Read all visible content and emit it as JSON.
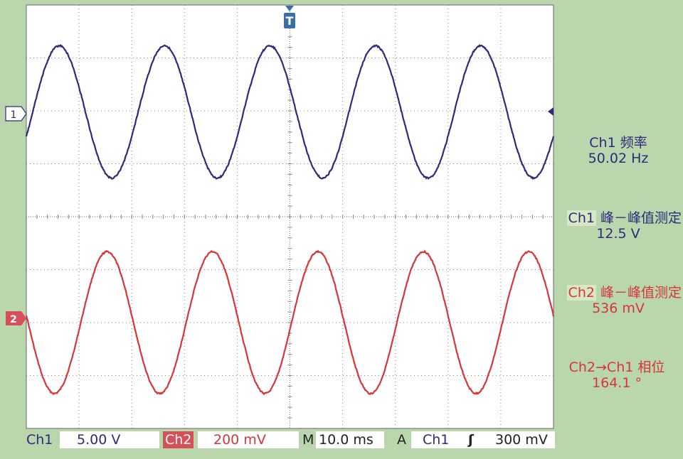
{
  "chart_data": {
    "type": "line",
    "title": "",
    "xlabel": "",
    "ylabel": "",
    "grid": true,
    "divisions": {
      "x": 10,
      "y": 8
    },
    "x_unit": "ms",
    "time_per_div_ms": 10.0,
    "xlim_ms": [
      -50,
      50
    ],
    "series": [
      {
        "name": "Ch1",
        "color": "#2f2a7a",
        "volts_per_div": 5.0,
        "frequency_hz": 50.02,
        "peak_to_peak_v": 12.5,
        "phase_deg": 164.1,
        "marker_label": "1"
      },
      {
        "name": "Ch2",
        "color": "#d6363a",
        "volts_per_div": 0.2,
        "frequency_hz": 50.02,
        "peak_to_peak_mv": 536,
        "phase_deg": 0,
        "marker_label": "2"
      }
    ],
    "trigger_marker": "T"
  },
  "measurements": [
    {
      "label_ch": "Ch1",
      "label_rest": " 频率",
      "value": "50.02 Hz",
      "color": "ch1",
      "tagged": false
    },
    {
      "label_ch": "Ch1",
      "label_rest": " 峰－峰值测定",
      "value": "12.5 V",
      "color": "ch1",
      "tagged": true
    },
    {
      "label_ch": "Ch2",
      "label_rest": " 峰－峰值测定",
      "value": "536 mV",
      "color": "ch2",
      "tagged": true
    },
    {
      "label_ch": "Ch2→Ch1",
      "label_rest": " 相位",
      "value": "164.1 °",
      "color": "ch2",
      "tagged": false
    }
  ],
  "status_bar": {
    "ch1_label": "Ch1",
    "ch1_scale": "5.00 V",
    "ch2_label": "Ch2",
    "ch2_scale": "200 mV",
    "timebase_label": "M",
    "timebase_value": "10.0 ms",
    "trigger_label": "A",
    "trigger_source": "Ch1",
    "trigger_slope": "ʃ",
    "trigger_level": "300 mV"
  },
  "colors": {
    "background": "#b9d6ad",
    "screen": "#ffffff",
    "grid": "#888888",
    "ch1": "#2f2a7a",
    "ch2": "#d6363a",
    "marker2_bg": "#d6505a",
    "trigger_marker": "#3a6ea5"
  }
}
